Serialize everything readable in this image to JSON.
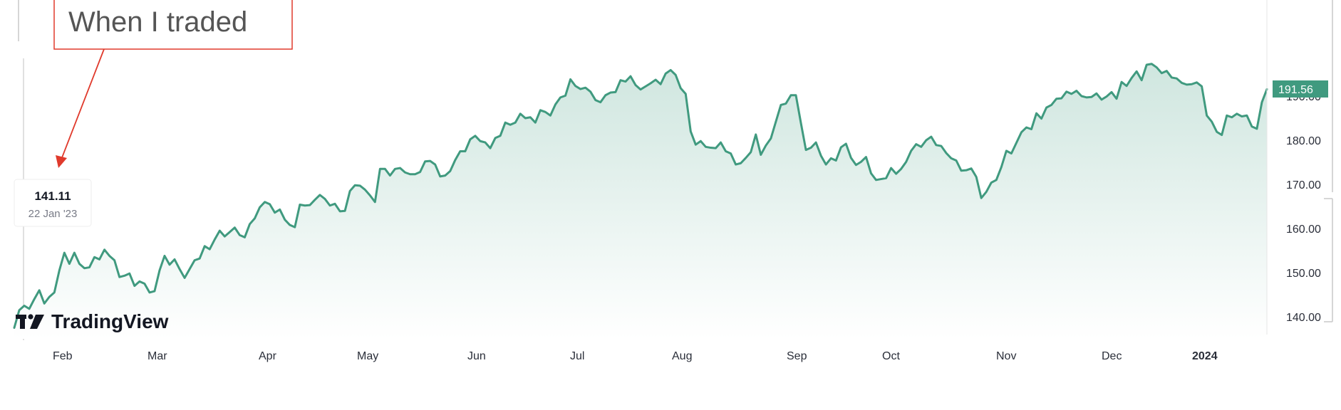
{
  "colors": {
    "line": "#409a7f",
    "fill_top": "#cfe6df",
    "fill_bottom": "#ffffff",
    "annotation": "#e03a2c",
    "price_label_bg": "#409a7f",
    "axis_text": "#2a2e39"
  },
  "annotation": {
    "text": "When I traded"
  },
  "tooltip": {
    "value": "141.11",
    "date": "22 Jan '23"
  },
  "last_price": {
    "label": "191.56",
    "value": 191.56
  },
  "branding": {
    "logo_text": "TradingView",
    "logo_icon": "tradingview-logo-icon"
  },
  "chart_data": {
    "type": "area",
    "title": "",
    "xlabel": "",
    "ylabel": "",
    "x_ticks": [
      "Feb",
      "Mar",
      "Apr",
      "May",
      "Jun",
      "Jul",
      "Aug",
      "Sep",
      "Oct",
      "Nov",
      "Dec",
      "2024"
    ],
    "y_ticks": [
      "140.00",
      "150.00",
      "160.00",
      "170.00",
      "180.00",
      "190.00"
    ],
    "ylim": [
      136,
      200
    ],
    "grid": false,
    "series": [
      {
        "values": [
          137.5,
          141.5,
          142.5,
          141.8,
          144,
          146,
          143,
          144.5,
          145.5,
          150.5,
          154.5,
          152,
          154.5,
          152,
          151,
          151.2,
          153.5,
          153,
          155.2,
          153.8,
          152.8,
          149,
          149.3,
          149.8,
          147,
          148,
          147.5,
          145.5,
          145.8,
          150.5,
          153.8,
          151.8,
          153,
          150.8,
          148.8,
          150.8,
          152.8,
          153.2,
          156,
          155.3,
          157.5,
          159.5,
          158.2,
          159.2,
          160.2,
          158.5,
          158,
          161,
          162.3,
          164.8,
          166,
          165.5,
          163.6,
          164.3,
          162,
          160.8,
          160.3,
          165.4,
          165.2,
          165.3,
          166.5,
          167.6,
          166.7,
          165.2,
          165.6,
          163.9,
          164,
          168.5,
          169.8,
          169.7,
          168.8,
          167.5,
          166,
          173.5,
          173.5,
          172,
          173.5,
          173.7,
          172.7,
          172.3,
          172.3,
          172.8,
          175.2,
          175.3,
          174.5,
          171.8,
          172,
          173,
          175.5,
          177.5,
          177.5,
          180.2,
          181,
          179.8,
          179.5,
          178.2,
          180.5,
          181,
          184,
          183.5,
          184,
          186,
          185,
          185.2,
          184,
          186.8,
          186.4,
          185.6,
          188.1,
          189.7,
          190.1,
          193.8,
          192.3,
          191.6,
          191.9,
          191,
          189.1,
          188.6,
          190.2,
          190.8,
          190.9,
          193.6,
          193.3,
          194.5,
          192.5,
          191.5,
          192.2,
          192.9,
          193.7,
          192.7,
          195.1,
          195.9,
          194.8,
          191.8,
          190.5,
          182,
          179,
          179.8,
          178.5,
          178.3,
          178.2,
          179.5,
          177.5,
          177,
          174.5,
          174.8,
          176,
          177.3,
          181.3,
          176.7,
          178.8,
          180.4,
          184.2,
          188,
          188.3,
          190.2,
          190.2,
          183.9,
          177.8,
          178.3,
          179.5,
          176.5,
          174.5,
          175.9,
          175.4,
          178.4,
          179.2,
          176,
          174.4,
          175.1,
          176.2,
          172.5,
          171,
          171.2,
          171.4,
          173.7,
          172.4,
          173.5,
          175.1,
          177.6,
          179.1,
          178.5,
          180,
          180.8,
          178.9,
          178.7,
          177.1,
          175.9,
          175.4,
          173.1,
          173.2,
          173.6,
          171.7,
          166.9,
          168.3,
          170.4,
          171,
          173.9,
          177.6,
          177,
          179.4,
          181.8,
          182.9,
          182.5,
          186.1,
          184.9,
          187.4,
          188,
          189.4,
          189.5,
          191,
          190.5,
          191.2,
          190,
          189.7,
          189.8,
          190.6,
          189.2,
          189.9,
          190.9,
          189.4,
          193.2,
          192.3,
          194.1,
          195.6,
          193.6,
          197.1,
          197.3,
          196.5,
          195.2,
          195.7,
          194.2,
          194,
          193,
          192.6,
          192.7,
          193.1,
          192.2,
          185.6,
          184.2,
          181.9,
          181.2,
          185.6,
          185.2,
          186,
          185.4,
          185.6,
          183.1,
          182.6,
          188.6,
          191.56
        ]
      }
    ]
  }
}
